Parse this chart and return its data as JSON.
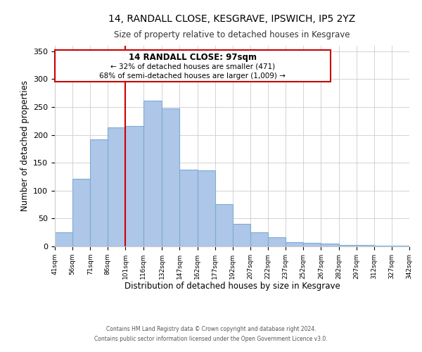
{
  "title_line1": "14, RANDALL CLOSE, KESGRAVE, IPSWICH, IP5 2YZ",
  "title_line2": "Size of property relative to detached houses in Kesgrave",
  "xlabel": "Distribution of detached houses by size in Kesgrave",
  "ylabel": "Number of detached properties",
  "bar_left_edges": [
    41,
    56,
    71,
    86,
    101,
    116,
    132,
    147,
    162,
    177,
    192,
    207,
    222,
    237,
    252,
    267,
    282,
    297,
    312,
    327
  ],
  "bar_widths": [
    15,
    15,
    15,
    15,
    15,
    16,
    15,
    15,
    15,
    15,
    15,
    15,
    15,
    15,
    15,
    15,
    15,
    15,
    15,
    15
  ],
  "bar_heights": [
    25,
    121,
    192,
    214,
    216,
    262,
    247,
    138,
    137,
    76,
    41,
    25,
    16,
    8,
    6,
    5,
    2,
    2,
    1,
    1
  ],
  "bar_color": "#aec6e8",
  "bar_edgecolor": "#7aadd4",
  "vline_x": 101,
  "vline_color": "#cc0000",
  "annotation_lines": [
    "14 RANDALL CLOSE: 97sqm",
    "← 32% of detached houses are smaller (471)",
    "68% of semi-detached houses are larger (1,009) →"
  ],
  "ylim": [
    0,
    360
  ],
  "xlim": [
    41,
    342
  ],
  "xtick_labels": [
    "41sqm",
    "56sqm",
    "71sqm",
    "86sqm",
    "101sqm",
    "116sqm",
    "132sqm",
    "147sqm",
    "162sqm",
    "177sqm",
    "192sqm",
    "207sqm",
    "222sqm",
    "237sqm",
    "252sqm",
    "267sqm",
    "282sqm",
    "297sqm",
    "312sqm",
    "327sqm",
    "342sqm"
  ],
  "xtick_positions": [
    41,
    56,
    71,
    86,
    101,
    116,
    132,
    147,
    162,
    177,
    192,
    207,
    222,
    237,
    252,
    267,
    282,
    297,
    312,
    327,
    342
  ],
  "ytick_positions": [
    0,
    50,
    100,
    150,
    200,
    250,
    300,
    350
  ],
  "footnote_line1": "Contains HM Land Registry data © Crown copyright and database right 2024.",
  "footnote_line2": "Contains public sector information licensed under the Open Government Licence v3.0."
}
